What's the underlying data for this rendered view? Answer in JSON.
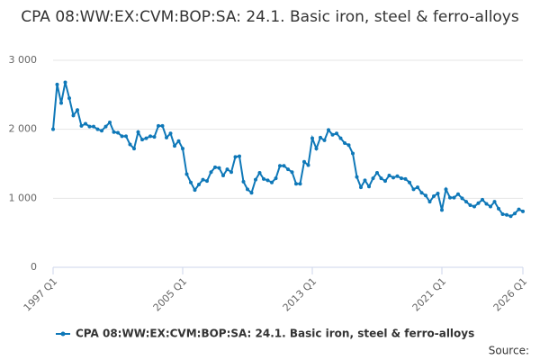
{
  "chart_data": {
    "type": "line",
    "title": "CPA 08:WW:EX:CVM:BOP:SA: 24.1. Basic iron, steel & ferro-alloys",
    "categories": [
      "1997 Q1",
      null,
      null,
      null,
      null,
      null,
      null,
      null,
      null,
      null,
      null,
      null,
      null,
      null,
      null,
      null,
      null,
      null,
      null,
      null,
      null,
      null,
      null,
      null,
      null,
      null,
      null,
      null,
      null,
      null,
      null,
      null,
      "2005 Q1",
      null,
      null,
      null,
      null,
      null,
      null,
      null,
      null,
      null,
      null,
      null,
      null,
      null,
      null,
      null,
      null,
      null,
      null,
      null,
      null,
      null,
      null,
      null,
      null,
      null,
      null,
      null,
      null,
      null,
      null,
      null,
      "2013 Q1",
      null,
      null,
      null,
      null,
      null,
      null,
      null,
      null,
      null,
      null,
      null,
      null,
      null,
      null,
      null,
      null,
      null,
      null,
      null,
      null,
      null,
      null,
      null,
      null,
      null,
      null,
      null,
      null,
      null,
      null,
      null,
      "2021 Q1",
      null,
      null,
      null,
      null,
      null,
      null,
      null,
      null,
      null,
      null,
      null,
      null,
      null,
      null,
      null,
      null,
      null,
      null,
      null,
      "2026 Q1"
    ],
    "series": [
      {
        "name": "CPA 08:WW:EX:CVM:BOP:SA: 24.1. Basic iron, steel & ferro-alloys",
        "color": "#0f78b8",
        "values": [
          2000,
          2650,
          2380,
          2680,
          2450,
          2200,
          2280,
          2050,
          2080,
          2040,
          2040,
          2000,
          1980,
          2040,
          2100,
          1960,
          1950,
          1900,
          1900,
          1780,
          1720,
          1960,
          1850,
          1870,
          1900,
          1890,
          2050,
          2050,
          1880,
          1940,
          1760,
          1830,
          1720,
          1350,
          1230,
          1120,
          1200,
          1270,
          1250,
          1380,
          1450,
          1440,
          1330,
          1420,
          1380,
          1600,
          1610,
          1240,
          1130,
          1080,
          1270,
          1370,
          1280,
          1260,
          1230,
          1290,
          1470,
          1470,
          1420,
          1380,
          1210,
          1210,
          1530,
          1480,
          1870,
          1720,
          1880,
          1840,
          1990,
          1920,
          1940,
          1870,
          1800,
          1770,
          1650,
          1310,
          1160,
          1260,
          1170,
          1290,
          1370,
          1290,
          1250,
          1330,
          1300,
          1320,
          1290,
          1280,
          1230,
          1130,
          1160,
          1080,
          1040,
          950,
          1030,
          1070,
          830,
          1130,
          1010,
          1010,
          1060,
          1000,
          950,
          900,
          880,
          930,
          980,
          920,
          880,
          950,
          850,
          770,
          760,
          740,
          780,
          840,
          810
        ]
      }
    ],
    "ylim": [
      0,
      3000
    ],
    "yticks": [
      0,
      {
        "value": 1000,
        "label": "1 000"
      },
      {
        "value": 2000,
        "label": "2 000"
      },
      {
        "value": 3000,
        "label": "3 000"
      }
    ],
    "grid": true,
    "source_label": "Source:"
  }
}
